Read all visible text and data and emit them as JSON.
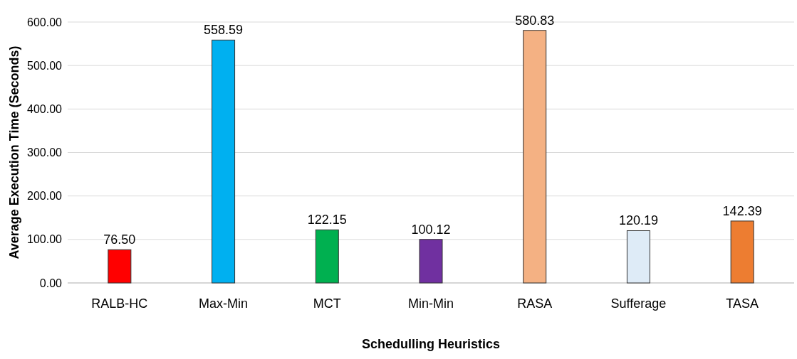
{
  "chart_data": {
    "type": "bar",
    "xlabel": "Schedulling Heuristics",
    "ylabel": "Average Execution Time (Seconds)",
    "categories": [
      "RALB-HC",
      "Max-Min",
      "MCT",
      "Min-Min",
      "RASA",
      "Sufferage",
      "TASA"
    ],
    "values": [
      76.5,
      558.59,
      122.15,
      100.12,
      580.83,
      120.19,
      142.39
    ],
    "value_labels": [
      "76.50",
      "558.59",
      "122.15",
      "100.12",
      "580.83",
      "120.19",
      "142.39"
    ],
    "colors": [
      "#ff0000",
      "#00b0f0",
      "#00b050",
      "#7030a0",
      "#f4b183",
      "#deebf7",
      "#ed7d31"
    ],
    "ylim": [
      0,
      600
    ],
    "yticks": [
      {
        "value": 0,
        "label": "0.00"
      },
      {
        "value": 100,
        "label": "100.00"
      },
      {
        "value": 200,
        "label": "200.00"
      },
      {
        "value": 300,
        "label": "300.00"
      },
      {
        "value": 400,
        "label": "400.00"
      },
      {
        "value": 500,
        "label": "500.00"
      },
      {
        "value": 600,
        "label": "600.00"
      }
    ],
    "grid": "y"
  }
}
